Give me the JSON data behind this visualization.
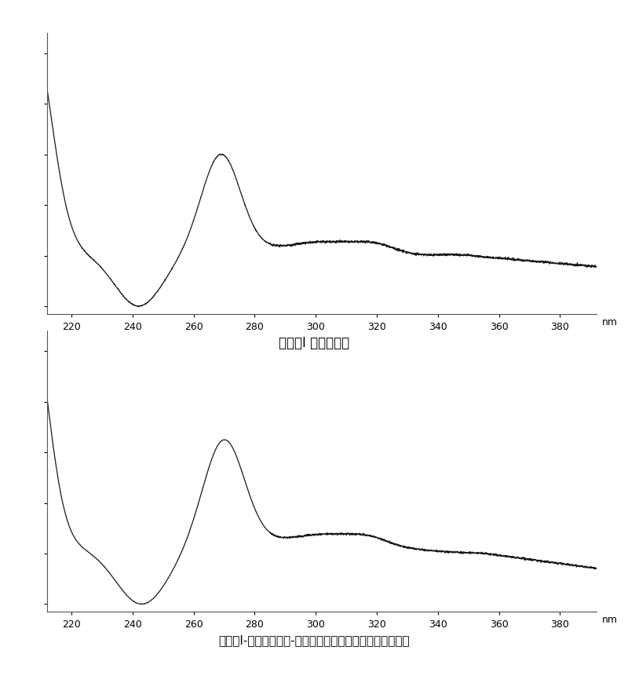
{
  "title1": "宝藿苷I 紫外扫描图",
  "title2": "宝藿苷I-氢化大豆磷脂-二棕榈酰基卵磷脂复合物紫外扫描图",
  "xlabel": "nm",
  "xmin": 212,
  "xmax": 392,
  "xticks": [
    220,
    240,
    260,
    280,
    300,
    320,
    340,
    360,
    380
  ],
  "background_color": "#ffffff",
  "line_color": "#1a1a1a",
  "axes_bg": "#ffffff"
}
